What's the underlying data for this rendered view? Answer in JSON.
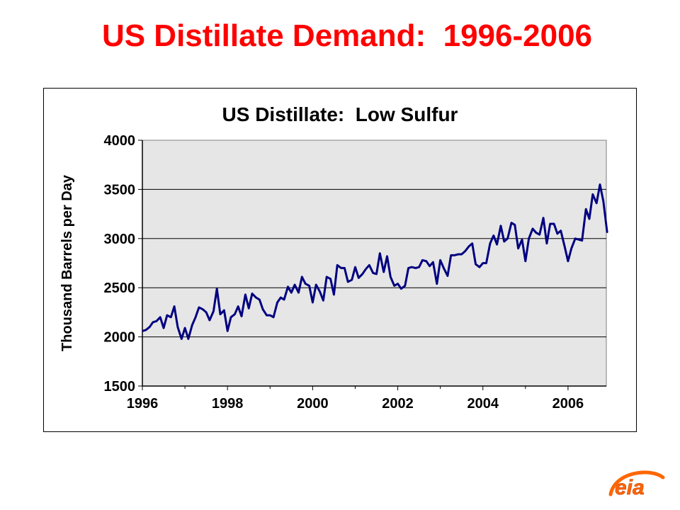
{
  "slide": {
    "title": "US Distillate Demand:  1996-2006"
  },
  "logo": {
    "text": "eia",
    "icon": "eia-logo",
    "accent": "#ff6600"
  },
  "colors": {
    "title": "#ff0000",
    "line": "#000080",
    "plot_bg": "#e6e6e6"
  },
  "chart_data": {
    "type": "line",
    "title": "US Distillate:  Low Sulfur",
    "xlabel": "",
    "ylabel": "Thousand Barrels per Day",
    "xlim": [
      1996,
      2006.9
    ],
    "ylim": [
      1500,
      4000
    ],
    "x_ticks": [
      1996,
      1998,
      2000,
      2002,
      2004,
      2006
    ],
    "y_ticks": [
      1500,
      2000,
      2500,
      3000,
      3500,
      4000
    ],
    "grid": "horizontal",
    "legend": "none",
    "series": [
      {
        "values": [
          [
            1996.0,
            2060
          ],
          [
            1996.08,
            2070
          ],
          [
            1996.17,
            2100
          ],
          [
            1996.25,
            2150
          ],
          [
            1996.33,
            2160
          ],
          [
            1996.42,
            2200
          ],
          [
            1996.5,
            2090
          ],
          [
            1996.58,
            2220
          ],
          [
            1996.67,
            2200
          ],
          [
            1996.75,
            2310
          ],
          [
            1996.83,
            2100
          ],
          [
            1996.92,
            1980
          ],
          [
            1997.0,
            2090
          ],
          [
            1997.08,
            1980
          ],
          [
            1997.17,
            2120
          ],
          [
            1997.25,
            2200
          ],
          [
            1997.33,
            2300
          ],
          [
            1997.42,
            2280
          ],
          [
            1997.5,
            2250
          ],
          [
            1997.58,
            2170
          ],
          [
            1997.67,
            2260
          ],
          [
            1997.75,
            2490
          ],
          [
            1997.83,
            2230
          ],
          [
            1997.92,
            2270
          ],
          [
            1998.0,
            2060
          ],
          [
            1998.08,
            2200
          ],
          [
            1998.17,
            2230
          ],
          [
            1998.25,
            2310
          ],
          [
            1998.33,
            2210
          ],
          [
            1998.42,
            2430
          ],
          [
            1998.5,
            2290
          ],
          [
            1998.58,
            2440
          ],
          [
            1998.67,
            2400
          ],
          [
            1998.75,
            2380
          ],
          [
            1998.83,
            2280
          ],
          [
            1998.92,
            2220
          ],
          [
            1999.0,
            2220
          ],
          [
            1999.08,
            2200
          ],
          [
            1999.17,
            2350
          ],
          [
            1999.25,
            2400
          ],
          [
            1999.33,
            2380
          ],
          [
            1999.42,
            2510
          ],
          [
            1999.5,
            2450
          ],
          [
            1999.58,
            2530
          ],
          [
            1999.67,
            2450
          ],
          [
            1999.75,
            2610
          ],
          [
            1999.83,
            2540
          ],
          [
            1999.92,
            2520
          ],
          [
            2000.0,
            2350
          ],
          [
            2000.08,
            2530
          ],
          [
            2000.17,
            2460
          ],
          [
            2000.25,
            2370
          ],
          [
            2000.33,
            2610
          ],
          [
            2000.42,
            2590
          ],
          [
            2000.5,
            2430
          ],
          [
            2000.58,
            2730
          ],
          [
            2000.67,
            2700
          ],
          [
            2000.75,
            2700
          ],
          [
            2000.83,
            2560
          ],
          [
            2000.92,
            2580
          ],
          [
            2001.0,
            2710
          ],
          [
            2001.08,
            2600
          ],
          [
            2001.17,
            2640
          ],
          [
            2001.25,
            2690
          ],
          [
            2001.33,
            2730
          ],
          [
            2001.42,
            2650
          ],
          [
            2001.5,
            2640
          ],
          [
            2001.58,
            2850
          ],
          [
            2001.67,
            2660
          ],
          [
            2001.75,
            2820
          ],
          [
            2001.83,
            2610
          ],
          [
            2001.92,
            2520
          ],
          [
            2002.0,
            2540
          ],
          [
            2002.08,
            2490
          ],
          [
            2002.17,
            2520
          ],
          [
            2002.25,
            2700
          ],
          [
            2002.33,
            2710
          ],
          [
            2002.42,
            2700
          ],
          [
            2002.5,
            2710
          ],
          [
            2002.58,
            2780
          ],
          [
            2002.67,
            2770
          ],
          [
            2002.75,
            2720
          ],
          [
            2002.83,
            2760
          ],
          [
            2002.92,
            2540
          ],
          [
            2003.0,
            2780
          ],
          [
            2003.08,
            2700
          ],
          [
            2003.17,
            2620
          ],
          [
            2003.25,
            2830
          ],
          [
            2003.33,
            2830
          ],
          [
            2003.42,
            2840
          ],
          [
            2003.5,
            2840
          ],
          [
            2003.58,
            2870
          ],
          [
            2003.67,
            2920
          ],
          [
            2003.75,
            2950
          ],
          [
            2003.83,
            2740
          ],
          [
            2003.92,
            2710
          ],
          [
            2004.0,
            2750
          ],
          [
            2004.08,
            2750
          ],
          [
            2004.17,
            2950
          ],
          [
            2004.25,
            3030
          ],
          [
            2004.33,
            2940
          ],
          [
            2004.42,
            3130
          ],
          [
            2004.5,
            2970
          ],
          [
            2004.58,
            3000
          ],
          [
            2004.67,
            3160
          ],
          [
            2004.75,
            3140
          ],
          [
            2004.83,
            2900
          ],
          [
            2004.92,
            2990
          ],
          [
            2005.0,
            2770
          ],
          [
            2005.08,
            3000
          ],
          [
            2005.17,
            3100
          ],
          [
            2005.25,
            3060
          ],
          [
            2005.33,
            3040
          ],
          [
            2005.42,
            3210
          ],
          [
            2005.5,
            2950
          ],
          [
            2005.58,
            3150
          ],
          [
            2005.67,
            3150
          ],
          [
            2005.75,
            3050
          ],
          [
            2005.83,
            3080
          ],
          [
            2005.92,
            2920
          ],
          [
            2006.0,
            2770
          ],
          [
            2006.08,
            2900
          ],
          [
            2006.17,
            3000
          ],
          [
            2006.25,
            2990
          ],
          [
            2006.33,
            2980
          ],
          [
            2006.42,
            3300
          ],
          [
            2006.5,
            3200
          ],
          [
            2006.58,
            3450
          ],
          [
            2006.67,
            3360
          ],
          [
            2006.75,
            3550
          ],
          [
            2006.83,
            3380
          ],
          [
            2006.92,
            3060
          ]
        ]
      }
    ]
  }
}
